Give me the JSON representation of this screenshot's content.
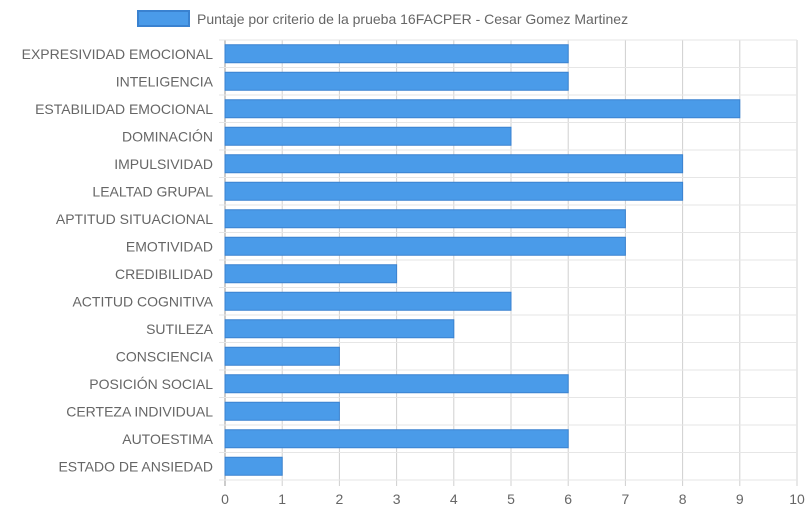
{
  "chart_data": {
    "type": "bar",
    "orientation": "horizontal",
    "legend_position": "top",
    "grid": true,
    "series": [
      {
        "name": "Puntaje por criterio de la prueba 16FACPER - Cesar Gomez Martinez",
        "color": "#4a9be9",
        "border_color": "#3a82d0",
        "values": [
          6,
          6,
          9,
          5,
          8,
          8,
          7,
          7,
          3,
          5,
          4,
          2,
          6,
          2,
          6,
          1
        ]
      }
    ],
    "categories": [
      "EXPRESIVIDAD EMOCIONAL",
      "INTELIGENCIA",
      "ESTABILIDAD EMOCIONAL",
      "DOMINACIÓN",
      "IMPULSIVIDAD",
      "LEALTAD GRUPAL",
      "APTITUD SITUACIONAL",
      "EMOTIVIDAD",
      "CREDIBILIDAD",
      "ACTITUD COGNITIVA",
      "SUTILEZA",
      "CONSCIENCIA",
      "POSICIÓN SOCIAL",
      "CERTEZA INDIVIDUAL",
      "AUTOESTIMA",
      "ESTADO DE ANSIEDAD"
    ],
    "xlim": [
      0,
      10
    ],
    "x_ticks": [
      "0",
      "1",
      "2",
      "3",
      "4",
      "5",
      "6",
      "7",
      "8",
      "9",
      "10"
    ]
  }
}
